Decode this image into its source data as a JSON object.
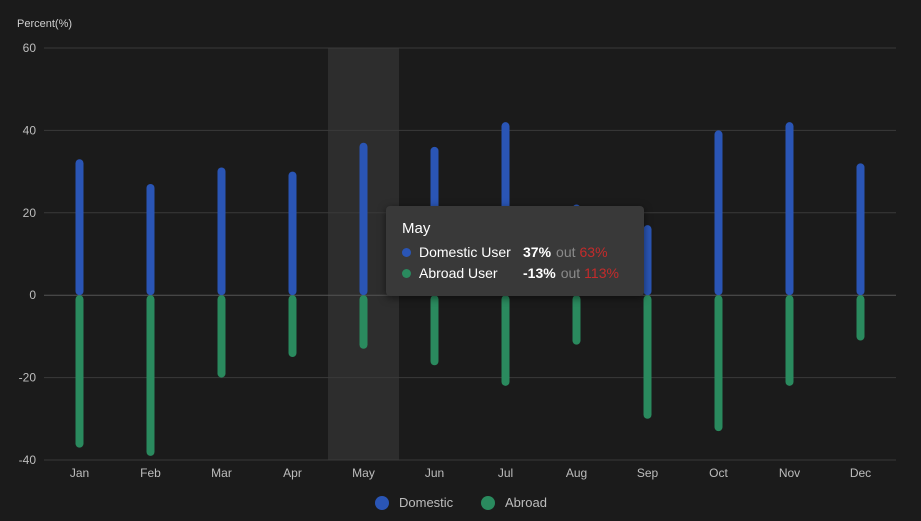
{
  "chart_data": {
    "type": "bar",
    "y_axis_name": "Percent(%)",
    "ylim": [
      -40,
      60
    ],
    "y_ticks": [
      "60",
      "40",
      "20",
      "0",
      "-20",
      "-40"
    ],
    "grid": true,
    "highlighted_category": "May",
    "categories": [
      "Jan",
      "Feb",
      "Mar",
      "Apr",
      "May",
      "Jun",
      "Jul",
      "Aug",
      "Sep",
      "Oct",
      "Nov",
      "Dec"
    ],
    "series": [
      {
        "name": "Domestic",
        "color": "#2a55b5",
        "values": [
          33,
          27,
          31,
          30,
          37,
          36,
          42,
          22,
          17,
          40,
          42,
          32
        ]
      },
      {
        "name": "Abroad",
        "color": "#2a8a5e",
        "values": [
          -37,
          -39,
          -20,
          -15,
          -13,
          -17,
          -22,
          -12,
          -30,
          -33,
          -22,
          -11
        ]
      }
    ],
    "legend": {
      "position": "bottom-center",
      "items": [
        "Domestic",
        "Abroad"
      ]
    }
  },
  "tooltip": {
    "title": "May",
    "rows": [
      {
        "name": "Domestic User",
        "value": "37%",
        "out_label": "out",
        "out_value": "63%",
        "color": "#2a55b5"
      },
      {
        "name": "Abroad User",
        "value": "-13%",
        "out_label": "out",
        "out_value": "113%",
        "color": "#2a8a5e"
      }
    ]
  }
}
